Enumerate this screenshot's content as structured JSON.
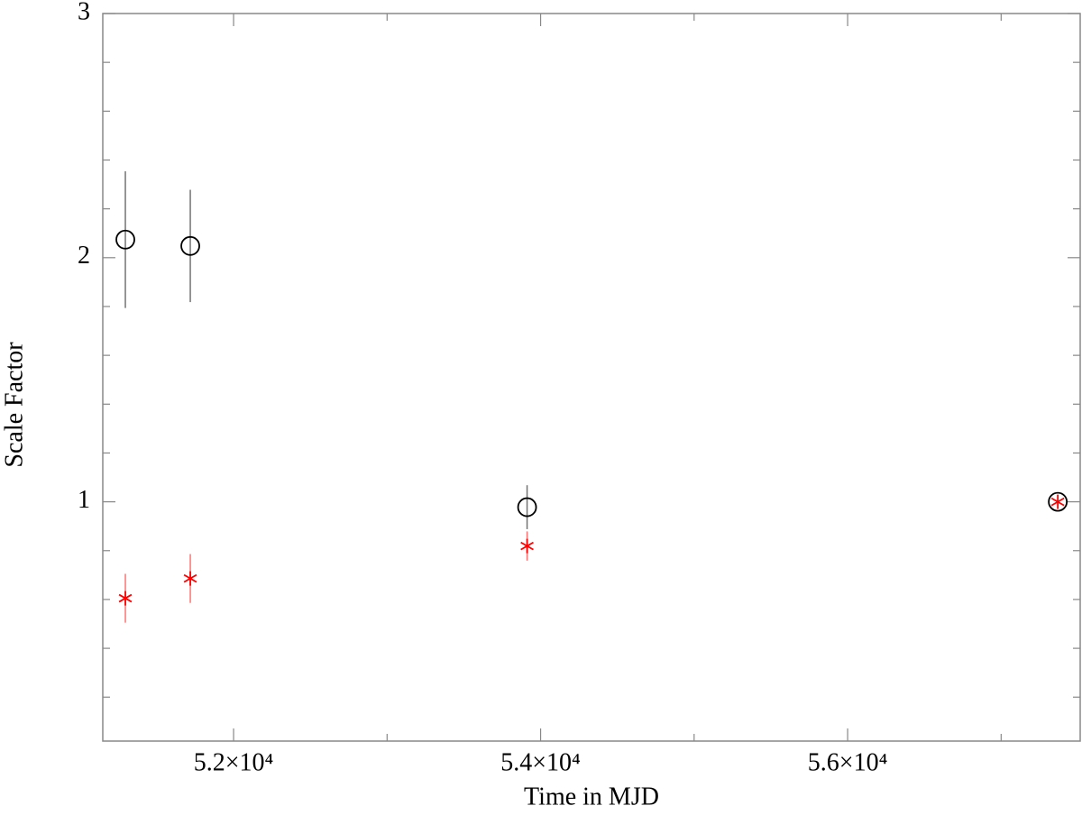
{
  "chart_data": {
    "type": "scatter",
    "x_label": "Time in MJD",
    "y_label": "Scale Factor",
    "x": [
      51295,
      51718,
      53912,
      57369
    ],
    "series": [
      {
        "color": "#000000",
        "marker": "circle",
        "values": [
          2.074,
          2.048,
          0.978,
          1.0
        ],
        "errors": [
          0.28,
          0.23,
          0.09,
          0
        ]
      },
      {
        "color": "#ff0000",
        "marker": "star",
        "values": [
          0.605,
          0.686,
          0.819,
          1.0
        ],
        "errors": [
          0.1,
          0.1,
          0.06,
          0
        ]
      }
    ],
    "xlim": [
      51148,
      57515
    ],
    "ylim": [
      0.02,
      3
    ],
    "xticks": [
      {
        "value": 52000,
        "label": "5.2×10⁴"
      },
      {
        "value": 54000,
        "label": "5.4×10⁴"
      },
      {
        "value": 56000,
        "label": "5.6×10⁴"
      }
    ],
    "xminorticks": [
      53000,
      55000,
      57000
    ],
    "yticks": [
      1,
      2,
      3
    ],
    "yminorticks": [
      0.2,
      0.4,
      0.6,
      0.8,
      1.2,
      1.4,
      1.6,
      1.8,
      2.2,
      2.4,
      2.6,
      2.8
    ]
  }
}
